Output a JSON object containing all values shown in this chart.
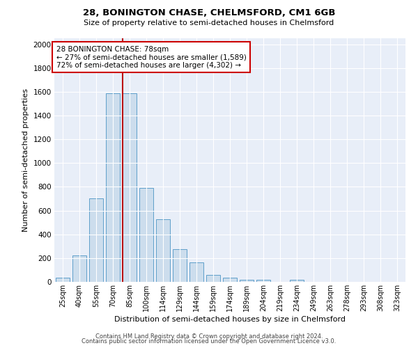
{
  "title1": "28, BONINGTON CHASE, CHELMSFORD, CM1 6GB",
  "title2": "Size of property relative to semi-detached houses in Chelmsford",
  "xlabel": "Distribution of semi-detached houses by size in Chelmsford",
  "ylabel_text": "Number of semi-detached properties",
  "categories": [
    "25sqm",
    "40sqm",
    "55sqm",
    "70sqm",
    "85sqm",
    "100sqm",
    "114sqm",
    "129sqm",
    "144sqm",
    "159sqm",
    "174sqm",
    "189sqm",
    "204sqm",
    "219sqm",
    "234sqm",
    "249sqm",
    "263sqm",
    "278sqm",
    "293sqm",
    "308sqm",
    "323sqm"
  ],
  "values": [
    35,
    220,
    700,
    1590,
    1590,
    790,
    530,
    275,
    165,
    60,
    35,
    20,
    15,
    0,
    20,
    0,
    0,
    0,
    0,
    0,
    0
  ],
  "bar_color": "#ccdded",
  "bar_edge_color": "#5f9fca",
  "vline_color": "#bb1111",
  "vline_x": 3.575,
  "annotation_title": "28 BONINGTON CHASE: 78sqm",
  "annotation_line1": "← 27% of semi-detached houses are smaller (1,589)",
  "annotation_line2": "72% of semi-detached houses are larger (4,302) →",
  "annotation_box_color": "#ffffff",
  "annotation_box_edge": "#cc0000",
  "ylim": [
    0,
    2050
  ],
  "yticks": [
    0,
    200,
    400,
    600,
    800,
    1000,
    1200,
    1400,
    1600,
    1800,
    2000
  ],
  "footer1": "Contains HM Land Registry data © Crown copyright and database right 2024.",
  "footer2": "Contains public sector information licensed under the Open Government Licence v3.0.",
  "bg_color": "#e8eef8",
  "grid_color": "#ffffff"
}
